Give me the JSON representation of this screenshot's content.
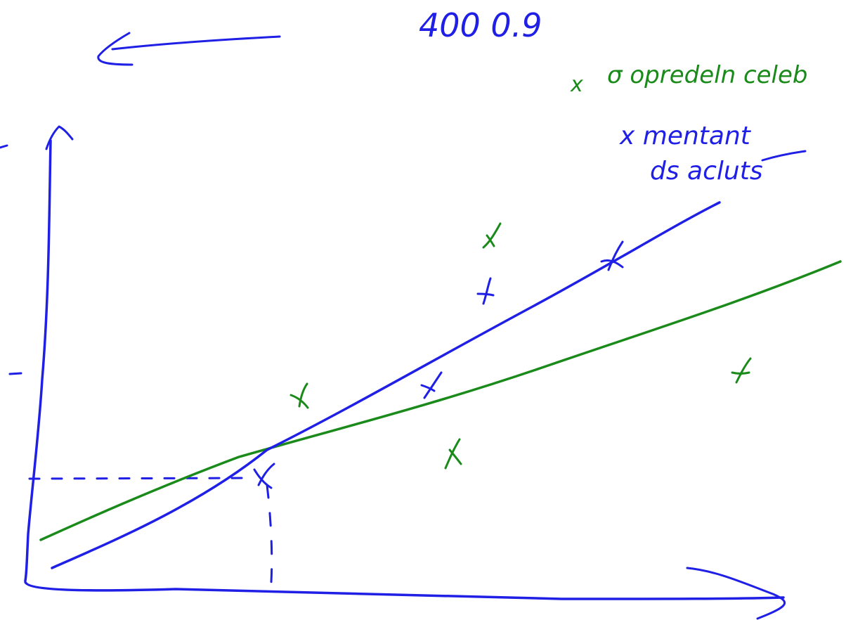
{
  "colors": {
    "blue_ink": "#1f1fe6",
    "green_ink": "#1a8a1a",
    "background": "#ffffff"
  },
  "header": {
    "left_arrow_icon": "arrow-left-icon",
    "note": "400 0.9"
  },
  "legend": {
    "green_marker": "x",
    "green_label": "σ opredeln celeb",
    "blue_label_line1": "x mentant",
    "blue_label_line2": "ds acluts"
  },
  "axes": {
    "x_axis_icon": "arrow-right-icon",
    "y_axis_icon": "arrow-up-icon",
    "y_tick_marks": [
      "-",
      "-"
    ]
  },
  "chart_data": {
    "type": "scatter",
    "series": [
      {
        "color": "#1a8a1a",
        "points": "x-marks",
        "fit_line": "line"
      },
      {
        "color": "#1f1fe6",
        "points": "x-marks",
        "fit_line": "line"
      }
    ]
  }
}
